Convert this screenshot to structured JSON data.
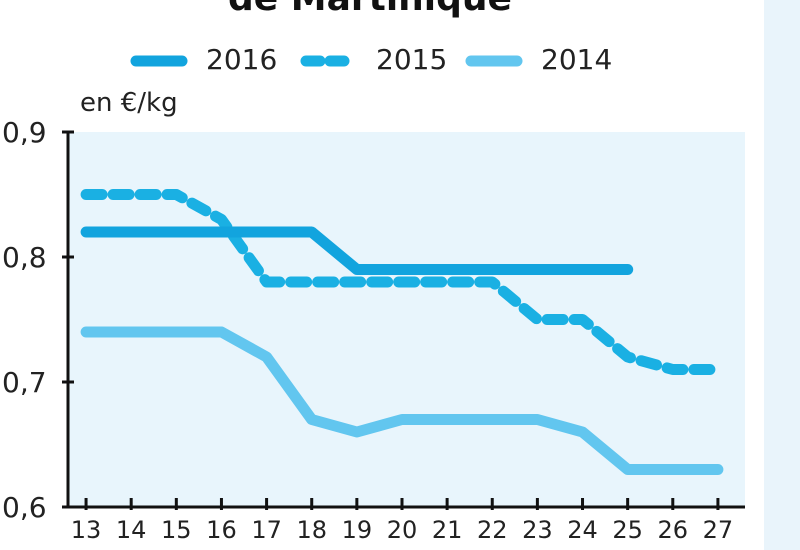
{
  "title": "de Martinique",
  "legend": [
    {
      "label": "2016",
      "color": "#12a4de",
      "style": "solid"
    },
    {
      "label": "2015",
      "color": "#1ab0e3",
      "style": "dashed"
    },
    {
      "label": "2014",
      "color": "#62c6ef",
      "style": "solid"
    }
  ],
  "chart_data": {
    "type": "line",
    "title": "de Martinique",
    "xlabel": "",
    "ylabel": "en €/kg",
    "x": [
      13,
      14,
      15,
      16,
      17,
      18,
      19,
      20,
      21,
      22,
      23,
      24,
      25,
      26,
      27
    ],
    "x_tick_labels": [
      "13",
      "14",
      "15",
      "16",
      "17",
      "18",
      "19",
      "20",
      "21",
      "22",
      "23",
      "24",
      "25",
      "26",
      "27"
    ],
    "y_tick_labels": [
      "0,6",
      "0,7",
      "0,8",
      "0,9"
    ],
    "y_ticks": [
      0.6,
      0.7,
      0.8,
      0.9
    ],
    "xlim": [
      12.6,
      27.6
    ],
    "ylim": [
      0.6,
      0.9
    ],
    "grid": false,
    "legend_position": "top",
    "plot_background": "#e8f5fc",
    "series": [
      {
        "name": "2016",
        "style": "solid",
        "color": "#12a4de",
        "points": [
          [
            13,
            0.82
          ],
          [
            18,
            0.82
          ],
          [
            19,
            0.79
          ],
          [
            25,
            0.79
          ]
        ]
      },
      {
        "name": "2015",
        "style": "dashed",
        "color": "#1ab0e3",
        "points": [
          [
            13,
            0.85
          ],
          [
            15,
            0.85
          ],
          [
            16,
            0.83
          ],
          [
            17,
            0.78
          ],
          [
            22,
            0.78
          ],
          [
            23,
            0.75
          ],
          [
            24,
            0.75
          ],
          [
            25,
            0.72
          ],
          [
            26,
            0.71
          ],
          [
            27,
            0.71
          ]
        ]
      },
      {
        "name": "2014",
        "style": "solid",
        "color": "#62c6ef",
        "points": [
          [
            13,
            0.74
          ],
          [
            16,
            0.74
          ],
          [
            17,
            0.72
          ],
          [
            18,
            0.67
          ],
          [
            19,
            0.66
          ],
          [
            20,
            0.67
          ],
          [
            23,
            0.67
          ],
          [
            24,
            0.66
          ],
          [
            25,
            0.63
          ],
          [
            27,
            0.63
          ]
        ]
      }
    ]
  }
}
